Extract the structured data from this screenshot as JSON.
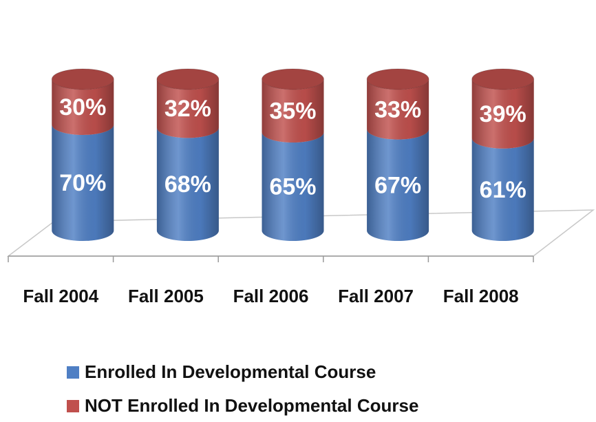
{
  "chart_data": {
    "type": "bar",
    "stacked": true,
    "categories": [
      "Fall 2004",
      "Fall 2005",
      "Fall 2006",
      "Fall 2007",
      "Fall 2008"
    ],
    "series": [
      {
        "name": "Enrolled In Developmental Course",
        "color": "#4f7fc4",
        "values": [
          70,
          68,
          65,
          67,
          61
        ],
        "value_labels": [
          "70%",
          "68%",
          "65%",
          "67%",
          "61%"
        ]
      },
      {
        "name": "NOT Enrolled In Developmental Course",
        "color": "#c0504d",
        "values": [
          30,
          32,
          35,
          33,
          39
        ],
        "value_labels": [
          "30%",
          "32%",
          "35%",
          "33%",
          "39%"
        ]
      }
    ],
    "legend": "bottom"
  }
}
